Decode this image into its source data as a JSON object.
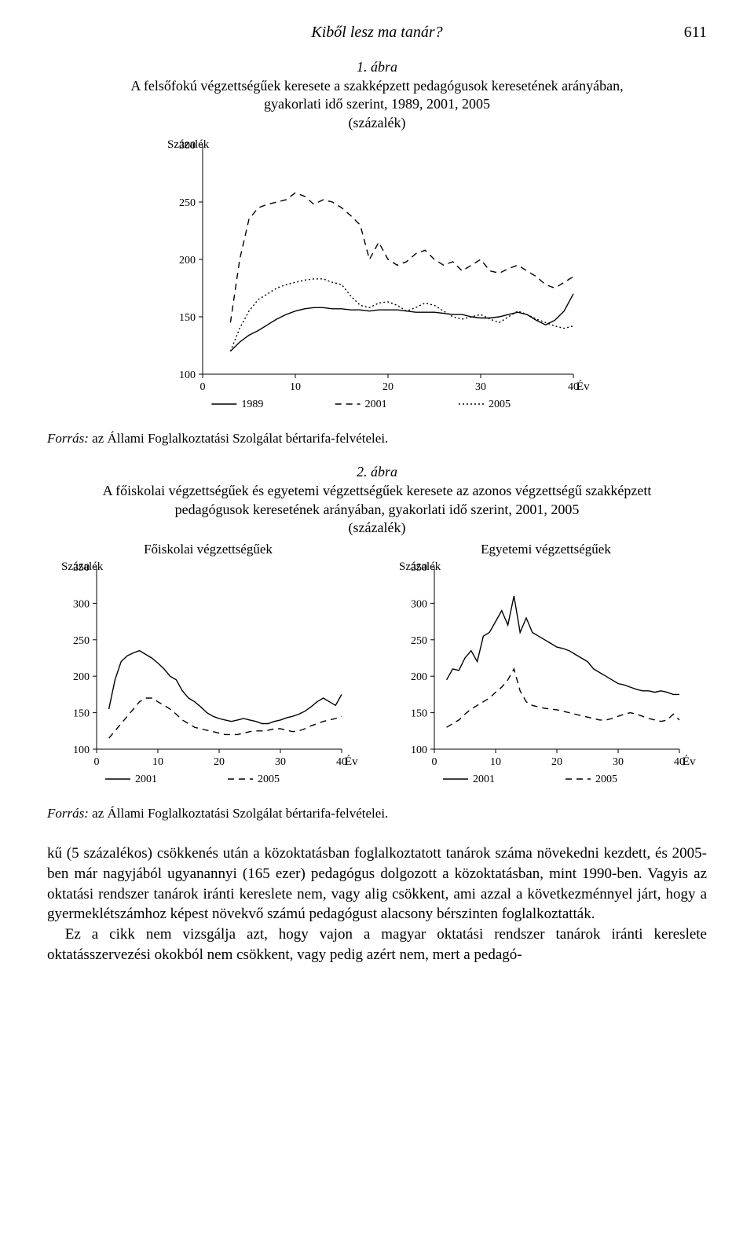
{
  "running_head": {
    "title": "Kiből lesz ma tanár?",
    "page_number": "611"
  },
  "fig1": {
    "title": "1. ábra",
    "desc_l1": "A felsőfokú végzettségűek keresete a szakképzett pedagógusok keresetének arányában,",
    "desc_l2": "gyakorlati idő szerint, 1989, 2001, 2005",
    "desc_l3": "(százalék)",
    "chart": {
      "type": "line",
      "ylabel": "Százalék",
      "xlabel": "Év",
      "xlim": [
        0,
        40
      ],
      "xtick_step": 10,
      "ylim": [
        100,
        300
      ],
      "ytick_step": 50,
      "background": "#ffffff",
      "axis_color": "#000000",
      "series": [
        {
          "name": "1989",
          "dash": "solid",
          "color": "#000000",
          "x": [
            3,
            4,
            5,
            6,
            7,
            8,
            9,
            10,
            11,
            12,
            13,
            14,
            15,
            16,
            17,
            18,
            19,
            20,
            21,
            22,
            23,
            24,
            25,
            26,
            27,
            28,
            29,
            30,
            31,
            32,
            33,
            34,
            35,
            36,
            37,
            38,
            39,
            40
          ],
          "y": [
            120,
            128,
            134,
            138,
            143,
            148,
            152,
            155,
            157,
            158,
            158,
            157,
            157,
            156,
            156,
            155,
            156,
            156,
            156,
            155,
            154,
            154,
            154,
            153,
            152,
            152,
            150,
            149,
            149,
            150,
            152,
            154,
            152,
            147,
            143,
            147,
            155,
            170
          ]
        },
        {
          "name": "2001",
          "dash": "8,6",
          "color": "#000000",
          "x": [
            3,
            4,
            5,
            6,
            7,
            8,
            9,
            10,
            11,
            12,
            13,
            14,
            15,
            16,
            17,
            18,
            19,
            20,
            21,
            22,
            23,
            24,
            25,
            26,
            27,
            28,
            29,
            30,
            31,
            32,
            33,
            34,
            35,
            36,
            37,
            38,
            39,
            40
          ],
          "y": [
            145,
            200,
            235,
            245,
            248,
            250,
            252,
            258,
            255,
            248,
            252,
            250,
            245,
            238,
            230,
            200,
            215,
            200,
            195,
            198,
            205,
            208,
            200,
            195,
            198,
            190,
            195,
            200,
            190,
            188,
            192,
            195,
            190,
            185,
            178,
            175,
            180,
            185
          ]
        },
        {
          "name": "2005",
          "dash": "2,3",
          "color": "#000000",
          "x": [
            3,
            4,
            5,
            6,
            7,
            8,
            9,
            10,
            11,
            12,
            13,
            14,
            15,
            16,
            17,
            18,
            19,
            20,
            21,
            22,
            23,
            24,
            25,
            26,
            27,
            28,
            29,
            30,
            31,
            32,
            33,
            34,
            35,
            36,
            37,
            38,
            39,
            40
          ],
          "y": [
            120,
            140,
            155,
            165,
            170,
            175,
            178,
            180,
            182,
            183,
            183,
            180,
            178,
            168,
            160,
            158,
            162,
            163,
            160,
            155,
            158,
            162,
            160,
            155,
            150,
            148,
            150,
            152,
            148,
            145,
            150,
            155,
            152,
            148,
            145,
            142,
            140,
            142
          ]
        }
      ],
      "legend": [
        "1989",
        "2001",
        "2005"
      ]
    }
  },
  "source1": {
    "label": "Forrás:",
    "text": " az Állami Foglalkoztatási Szolgálat bértarifa-felvételei."
  },
  "fig2": {
    "title": "2. ábra",
    "desc_l1": "A főiskolai végzettségűek és egyetemi végzettségűek keresete az azonos végzettségű szakképzett",
    "desc_l2": "pedagógusok keresetének arányában, gyakorlati idő szerint, 2001, 2005",
    "desc_l3": "(százalék)",
    "left": {
      "subtitle": "Főiskolai végzettségűek",
      "chart": {
        "type": "line",
        "ylabel": "Százalék",
        "xlabel": "Év",
        "xlim": [
          0,
          40
        ],
        "xtick_step": 10,
        "ylim": [
          100,
          350
        ],
        "ytick_step": 50,
        "background": "#ffffff",
        "axis_color": "#000000",
        "series": [
          {
            "name": "2001",
            "dash": "solid",
            "color": "#000000",
            "x": [
              2,
              3,
              4,
              5,
              6,
              7,
              8,
              9,
              10,
              11,
              12,
              13,
              14,
              15,
              16,
              17,
              18,
              19,
              20,
              21,
              22,
              23,
              24,
              25,
              26,
              27,
              28,
              29,
              30,
              31,
              32,
              33,
              34,
              35,
              36,
              37,
              38,
              39,
              40
            ],
            "y": [
              155,
              195,
              220,
              228,
              232,
              235,
              230,
              225,
              218,
              210,
              200,
              195,
              180,
              170,
              165,
              158,
              150,
              145,
              142,
              140,
              138,
              140,
              142,
              140,
              138,
              135,
              135,
              138,
              140,
              143,
              145,
              148,
              152,
              158,
              165,
              170,
              165,
              160,
              175
            ]
          },
          {
            "name": "2005",
            "dash": "8,6",
            "color": "#000000",
            "x": [
              2,
              3,
              4,
              5,
              6,
              7,
              8,
              9,
              10,
              11,
              12,
              13,
              14,
              15,
              16,
              17,
              18,
              19,
              20,
              21,
              22,
              23,
              24,
              25,
              26,
              27,
              28,
              29,
              30,
              31,
              32,
              33,
              34,
              35,
              36,
              37,
              38,
              39,
              40
            ],
            "y": [
              115,
              125,
              135,
              145,
              155,
              165,
              170,
              170,
              165,
              160,
              155,
              148,
              140,
              135,
              130,
              128,
              126,
              124,
              122,
              120,
              120,
              120,
              122,
              124,
              125,
              125,
              126,
              128,
              128,
              126,
              124,
              125,
              128,
              132,
              135,
              138,
              140,
              142,
              145
            ]
          }
        ],
        "legend": [
          "2001",
          "2005"
        ]
      }
    },
    "right": {
      "subtitle": "Egyetemi végzettségűek",
      "chart": {
        "type": "line",
        "ylabel": "Százalék",
        "xlabel": "Év",
        "xlim": [
          0,
          40
        ],
        "xtick_step": 10,
        "ylim": [
          100,
          350
        ],
        "ytick_step": 50,
        "background": "#ffffff",
        "axis_color": "#000000",
        "series": [
          {
            "name": "2001",
            "dash": "solid",
            "color": "#000000",
            "x": [
              2,
              3,
              4,
              5,
              6,
              7,
              8,
              9,
              10,
              11,
              12,
              13,
              14,
              15,
              16,
              17,
              18,
              19,
              20,
              21,
              22,
              23,
              24,
              25,
              26,
              27,
              28,
              29,
              30,
              31,
              32,
              33,
              34,
              35,
              36,
              37,
              38,
              39,
              40
            ],
            "y": [
              195,
              210,
              208,
              225,
              235,
              220,
              255,
              260,
              275,
              290,
              270,
              310,
              260,
              280,
              260,
              255,
              250,
              245,
              240,
              238,
              235,
              230,
              225,
              220,
              210,
              205,
              200,
              195,
              190,
              188,
              185,
              182,
              180,
              180,
              178,
              180,
              178,
              175,
              175
            ]
          },
          {
            "name": "2005",
            "dash": "8,6",
            "color": "#000000",
            "x": [
              2,
              3,
              4,
              5,
              6,
              7,
              8,
              9,
              10,
              11,
              12,
              13,
              14,
              15,
              16,
              17,
              18,
              19,
              20,
              21,
              22,
              23,
              24,
              25,
              26,
              27,
              28,
              29,
              30,
              31,
              32,
              33,
              34,
              35,
              36,
              37,
              38,
              39,
              40
            ],
            "y": [
              130,
              135,
              140,
              148,
              155,
              160,
              165,
              170,
              178,
              185,
              195,
              210,
              180,
              165,
              160,
              158,
              156,
              155,
              154,
              152,
              150,
              148,
              146,
              144,
              142,
              140,
              140,
              142,
              145,
              148,
              150,
              148,
              145,
              142,
              140,
              138,
              140,
              148,
              140
            ]
          }
        ],
        "legend": [
          "2001",
          "2005"
        ]
      }
    }
  },
  "source2": {
    "label": "Forrás:",
    "text": " az Állami Foglalkoztatási Szolgálat bértarifa-felvételei."
  },
  "body": {
    "p1": "kű (5 százalékos) csökkenés után a közoktatásban foglalkoztatott tanárok száma növekedni kezdett, és 2005-ben már nagyjából ugyanannyi (165 ezer) pedagógus dolgozott a közoktatásban, mint 1990-ben. Vagyis az oktatási rendszer tanárok iránti kereslete nem, vagy alig csökkent, ami azzal a következménnyel járt, hogy a gyermeklétszámhoz képest növekvő számú pedagógust alacsony bérszinten foglalkoztatták.",
    "p2": "Ez a cikk nem vizsgálja azt, hogy vajon a magyar oktatási rendszer tanárok iránti kereslete oktatásszervezési okokból nem csökkent, vagy pedig azért nem, mert a pedagó-"
  }
}
